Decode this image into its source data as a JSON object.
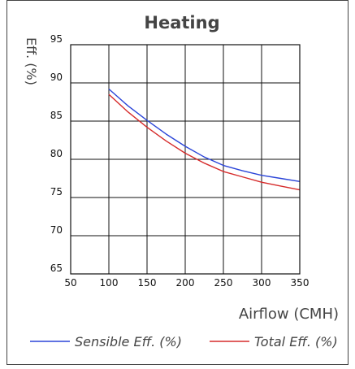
{
  "chart_data": {
    "type": "line",
    "title": "Heating",
    "xlabel": "Airflow (CMH)",
    "ylabel": "Eff. (%)",
    "xlim": [
      50,
      350
    ],
    "ylim": [
      65,
      95
    ],
    "xticks": [
      50,
      100,
      150,
      200,
      250,
      300,
      350
    ],
    "yticks": [
      65,
      70,
      75,
      80,
      85,
      90,
      95
    ],
    "grid": true,
    "legend_position": "bottom",
    "series": [
      {
        "name": "Sensible Eff. (%)",
        "color": "#2b45d8",
        "x": [
          100,
          125,
          150,
          175,
          200,
          225,
          250,
          275,
          300,
          325,
          350
        ],
        "y": [
          89.2,
          87.0,
          85.1,
          83.3,
          81.7,
          80.3,
          79.2,
          78.5,
          77.9,
          77.5,
          77.1
        ]
      },
      {
        "name": "Total Eff. (%)",
        "color": "#d62b2b",
        "x": [
          100,
          125,
          150,
          175,
          200,
          225,
          250,
          275,
          300,
          325,
          350
        ],
        "y": [
          88.5,
          86.2,
          84.2,
          82.4,
          80.8,
          79.5,
          78.4,
          77.7,
          77.0,
          76.5,
          76.0
        ]
      }
    ]
  }
}
